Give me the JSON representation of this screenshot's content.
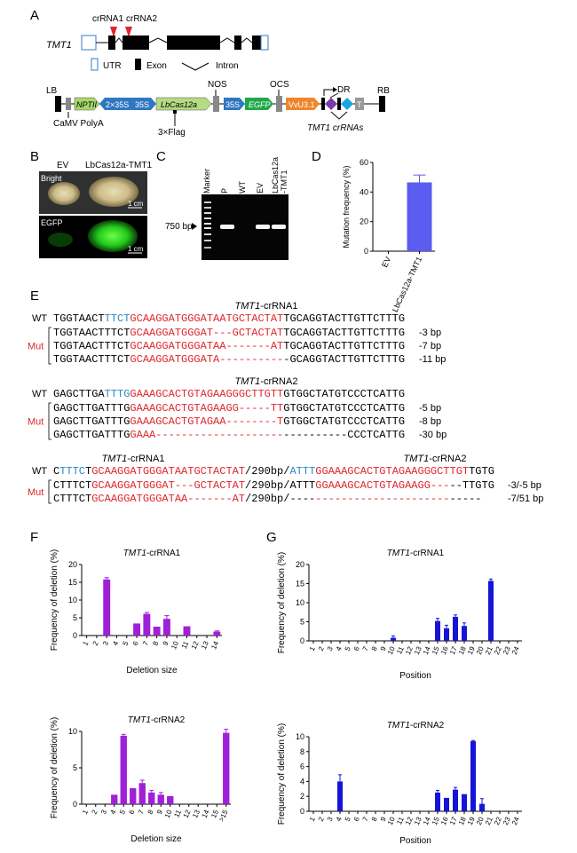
{
  "panel_labels": [
    "A",
    "B",
    "C",
    "D",
    "E",
    "F",
    "G"
  ],
  "panelA": {
    "gene_name": "TMT1",
    "crrna1_label": "crRNA1",
    "crrna2_label": "crRNA2",
    "legend": {
      "utr": "UTR",
      "exon": "Exon",
      "intron": "Intron"
    },
    "construct": {
      "lb": "LB",
      "rb": "RB",
      "nptii": "NPTII",
      "p35s2x": "2×35S",
      "p35s_a": "35S",
      "lbcas12a": "LbCas12a",
      "nos": "NOS",
      "p35s_b": "35S",
      "egfp": "EGFP",
      "ocs": "OCS",
      "vvu3": "VvU3.1",
      "dr": "DR",
      "t": "T",
      "camv": "CaMV PolyA",
      "flag": "3×Flag",
      "crrnas": "TMT1 crRNAs"
    }
  },
  "panelB": {
    "ev": "EV",
    "lbcas": "LbCas12a-TMT1",
    "bright": "Bright",
    "egfp": "EGFP",
    "scale1": "1 cm",
    "scale2": "1 cm"
  },
  "panelC": {
    "lanes": [
      "Marker",
      "P",
      "WT",
      "EV",
      "LbCas12a\n-TMT1"
    ],
    "size_label": "750 bp"
  },
  "panelD": {
    "chart_data": {
      "type": "bar",
      "categories": [
        "EV",
        "LbCas12a-TMT1"
      ],
      "values": [
        0,
        46.5
      ],
      "errors": [
        0,
        5
      ],
      "ylabel": "Mutation frequency (%)",
      "ylim": [
        0,
        60
      ],
      "yticks": [
        0,
        20,
        40,
        60
      ],
      "color": "#5b5cf0"
    }
  },
  "panelE": {
    "title1": "TMT1-crRNA1",
    "title2": "TMT1-crRNA2",
    "wt": "WT",
    "mut": "Mut",
    "block1": {
      "wt": "TGGTAACTTTCTGCAAGGATGGGATAATGCTACTATTGCAGGTACTTGTTCTTTG",
      "muts": [
        {
          "seq": "TGGTAACTTTCTGCAAGGATGGGAT---GCTACTATTGCAGGTACTTGTTCTTTG",
          "label": "-3 bp"
        },
        {
          "seq": "TGGTAACTTTCTGCAAGGATGGGATAA-------ATTGCAGGTACTTGTTCTTTG",
          "label": "-7 bp"
        },
        {
          "seq": "TGGTAACTTTCTGCAAGGATGGGATA-----------GCAGGTACTTGTTCTTTG",
          "label": "-11 bp"
        }
      ]
    },
    "block2": {
      "wt": "GAGCTTGATTTGGAAAGCACTGTAGAAGGGCTTGTTGTGGCTATGTCCCTCATTG",
      "muts": [
        {
          "seq": "GAGCTTGATTTGGAAAGCACTGTAGAAGG-----TTGTGGCTATGTCCCTCATTG",
          "label": "-5 bp"
        },
        {
          "seq": "GAGCTTGATTTGGAAAGCACTGTAGAA--------TGTGGCTATGTCCCTCATTG",
          "label": "-8 bp"
        },
        {
          "seq": "GAGCTTGATTTGGAAA------------------------------CCCTCATTG",
          "label": "-30 bp"
        }
      ]
    },
    "block3": {
      "title_left": "TMT1-crRNA1",
      "title_right": "TMT1-crRNA2",
      "wt": "CTTTCTGCAAGGATGGGATAATGCTACTAT/290bp/ATTTGGAAAGCACTGTAGAAGGGCTTGTTGTG",
      "muts": [
        {
          "seq": "CTTTCTGCAAGGATGGGAT---GCTACTAT/290bp/ATTTGGAAAGCACTGTAGAAGG-----TTGTG",
          "label": "-3/-5 bp"
        },
        {
          "seq": "CTTTCTGCAAGGATGGGATAA-------AT/290bp/------------------------------",
          "label": "-7/51 bp"
        }
      ]
    }
  },
  "panelF": {
    "color": "#a020d8",
    "chart_data": [
      {
        "type": "bar",
        "title": "TMT1-crRNA1",
        "xlabel": "Deletion size",
        "ylabel": "Frequency of deletion (%)",
        "categories": [
          "1",
          "2",
          "3",
          "4",
          "5",
          "6",
          "7",
          "8",
          "9",
          "10",
          "11",
          "12",
          "13",
          "14"
        ],
        "values": [
          0,
          0,
          15.8,
          0,
          0,
          3.4,
          6.1,
          2.5,
          4.7,
          0,
          2.6,
          0,
          0,
          1.1
        ],
        "errors": [
          0,
          0,
          0.5,
          0,
          0,
          0,
          0.4,
          0,
          0.9,
          0,
          0,
          0,
          0,
          0.2
        ],
        "ylim": [
          0,
          20
        ],
        "yticks": [
          0,
          5,
          10,
          15,
          20
        ]
      },
      {
        "type": "bar",
        "title": "TMT1-crRNA2",
        "xlabel": "Deletion size",
        "ylabel": "Frequency of deletion (%)",
        "categories": [
          "1",
          "2",
          "3",
          "4",
          "5",
          "6",
          "7",
          "8",
          "9",
          "10",
          "11",
          "12",
          "13",
          "14",
          "15",
          ">15"
        ],
        "values": [
          0,
          0,
          0,
          1.3,
          9.4,
          2.2,
          2.9,
          1.6,
          1.3,
          1.1,
          0,
          0,
          0,
          0,
          0,
          9.8
        ],
        "errors": [
          0,
          0,
          0,
          0,
          0.2,
          0,
          0.4,
          0.3,
          0.3,
          0,
          0,
          0,
          0,
          0,
          0,
          0.5
        ],
        "ylim": [
          0,
          10
        ],
        "yticks": [
          0,
          5,
          10
        ]
      }
    ]
  },
  "panelG": {
    "color": "#1515d8",
    "chart_data": [
      {
        "type": "bar",
        "title": "TMT1-crRNA1",
        "xlabel": "Position",
        "ylabel": "Frequency of deletion (%)",
        "categories": [
          "1",
          "2",
          "3",
          "4",
          "5",
          "6",
          "7",
          "8",
          "9",
          "10",
          "11",
          "12",
          "13",
          "14",
          "15",
          "16",
          "17",
          "18",
          "19",
          "20",
          "21",
          "22",
          "23",
          "24"
        ],
        "values": [
          0,
          0,
          0,
          0,
          0,
          0,
          0,
          0,
          0,
          0.8,
          0,
          0,
          0,
          0,
          5.2,
          3.3,
          6.3,
          3.9,
          0,
          0,
          15.7,
          0,
          0,
          0
        ],
        "errors": [
          0,
          0,
          0,
          0,
          0,
          0,
          0,
          0,
          0,
          0.5,
          0,
          0,
          0,
          0,
          0.7,
          0.8,
          0.5,
          0.8,
          0,
          0,
          0.5,
          0,
          0,
          0
        ],
        "ylim": [
          0,
          20
        ],
        "yticks": [
          0,
          5,
          10,
          15,
          20
        ]
      },
      {
        "type": "bar",
        "title": "TMT1-crRNA2",
        "xlabel": "Position",
        "ylabel": "Frequency of deletion (%)",
        "categories": [
          "1",
          "2",
          "3",
          "4",
          "5",
          "6",
          "7",
          "8",
          "9",
          "10",
          "11",
          "12",
          "13",
          "14",
          "15",
          "16",
          "17",
          "18",
          "19",
          "20",
          "21",
          "22",
          "23",
          "24"
        ],
        "values": [
          0,
          0,
          0,
          4,
          0,
          0,
          0,
          0,
          0,
          0,
          0,
          0,
          0,
          0,
          2.5,
          1.8,
          2.9,
          2.3,
          9.4,
          1,
          0,
          0,
          0,
          0
        ],
        "errors": [
          0,
          0,
          0,
          0.9,
          0,
          0,
          0,
          0,
          0,
          0,
          0,
          0,
          0,
          0,
          0.3,
          0,
          0.3,
          0,
          0.1,
          0.7,
          0,
          0,
          0,
          0
        ],
        "ylim": [
          0,
          10
        ],
        "yticks": [
          0,
          2,
          4,
          6,
          8,
          10
        ]
      }
    ]
  }
}
